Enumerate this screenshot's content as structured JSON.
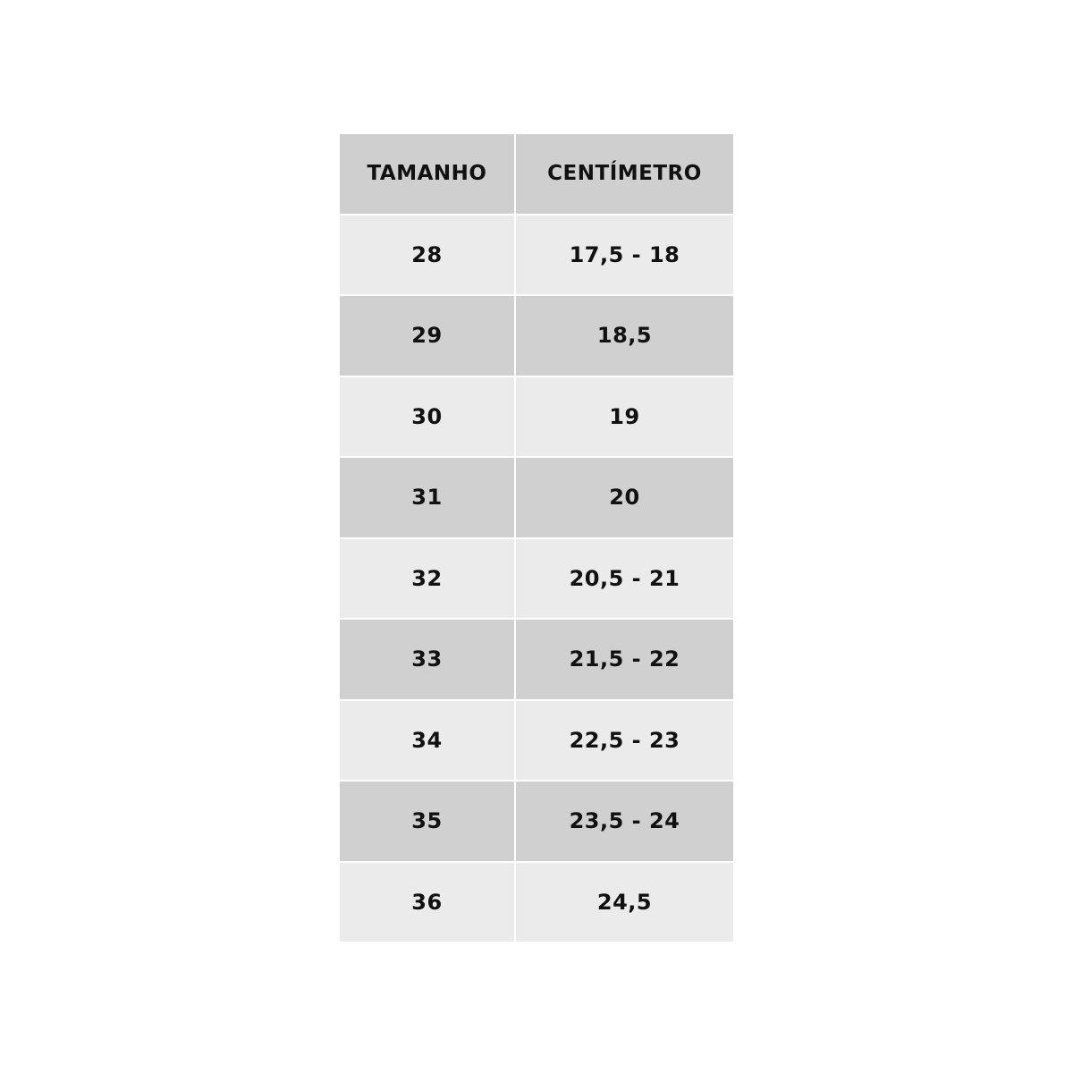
{
  "table": {
    "headers": [
      "TAMANHO",
      "CENTÍMETRO"
    ],
    "rows": [
      [
        "28",
        "17,5 - 18"
      ],
      [
        "29",
        "18,5"
      ],
      [
        "30",
        "19"
      ],
      [
        "31",
        "20"
      ],
      [
        "32",
        "20,5 - 21"
      ],
      [
        "33",
        "21,5 - 22"
      ],
      [
        "34",
        "22,5 - 23"
      ],
      [
        "35",
        "23,5 - 24"
      ],
      [
        "36",
        "24,5"
      ]
    ],
    "colors": {
      "header": "#cfcfcf",
      "row_light": "#ebebeb",
      "row_dark": "#d0d0d0",
      "text": "#111111"
    }
  }
}
